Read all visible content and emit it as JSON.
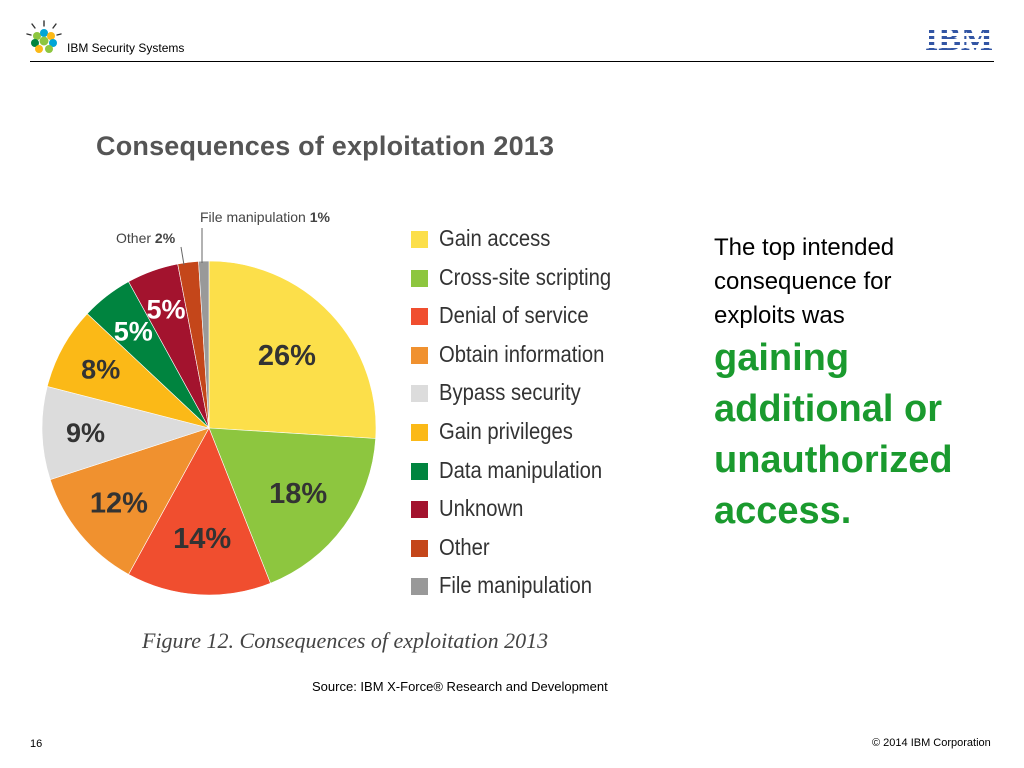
{
  "header": {
    "title": "IBM Security Systems",
    "logo_text": "IBM"
  },
  "chart_data": {
    "type": "pie",
    "title": "Consequences of exploitation 2013",
    "categories": [
      "Gain access",
      "Cross-site scripting",
      "Denial of service",
      "Obtain information",
      "Bypass security",
      "Gain privileges",
      "Data manipulation",
      "Unknown",
      "Other",
      "File manipulation"
    ],
    "values": [
      26,
      18,
      14,
      12,
      9,
      8,
      5,
      5,
      2,
      1
    ],
    "value_labels": [
      "26%",
      "18%",
      "14%",
      "12%",
      "9%",
      "8%",
      "5%",
      "5%",
      "2%",
      "1%"
    ],
    "colors": [
      "#fcdf4a",
      "#8dc63f",
      "#f04e2f",
      "#f0912f",
      "#dcdcdc",
      "#fbb917",
      "#00843f",
      "#a3132e",
      "#c4461a",
      "#999999"
    ],
    "label_colors": [
      "#333333",
      "#333333",
      "#333333",
      "#333333",
      "#333333",
      "#333333",
      "#ffffff",
      "#ffffff",
      "#333333",
      "#333333"
    ],
    "callouts": [
      {
        "name": "File manipulation",
        "value": "1%"
      },
      {
        "name": "Other",
        "value": "2%"
      }
    ],
    "legend": "right",
    "caption": "Figure 12. Consequences of exploitation 2013",
    "source": "Source: IBM X-Force® Research and Development"
  },
  "side_text": {
    "intro": "The top intended consequence for exploits was",
    "emphasis": "gaining additional or unauthorized access."
  },
  "footer": {
    "page_number": "16",
    "copyright": "© 2014 IBM Corporation"
  }
}
